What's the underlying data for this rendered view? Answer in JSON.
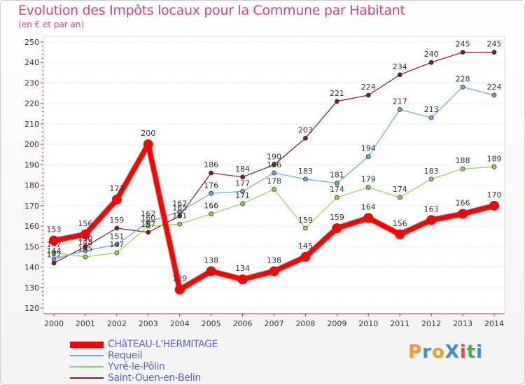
{
  "header": {
    "title": "Evolution des Impôts locaux pour la Commune par Habitant",
    "subtitle": "(en € et par an)"
  },
  "brand": {
    "name": "ProXiti",
    "colors": [
      "#f29a2e",
      "#3d8fd6",
      "#e0a92b",
      "#3d8fd6",
      "#e24f3d",
      "#4fae4a",
      "#3d8fd6"
    ]
  },
  "chart_data": {
    "type": "line",
    "title": "Evolution des Impôts locaux pour la Commune par Habitant",
    "subtitle": "(en € et par an)",
    "xlabel": "",
    "ylabel": "",
    "x": [
      "2000",
      "2001",
      "2002",
      "2003",
      "2004",
      "2005",
      "2006",
      "2007",
      "2008",
      "2009",
      "2010",
      "2011",
      "2012",
      "2013",
      "2014"
    ],
    "ylim": [
      120,
      250
    ],
    "yticks": [
      120,
      130,
      140,
      150,
      160,
      170,
      180,
      190,
      200,
      210,
      220,
      230,
      240,
      250
    ],
    "grid": true,
    "legend_position": "bottom-left",
    "series": [
      {
        "name": "Saint-Ouen-en-Belin",
        "color": "#7a1f1f",
        "width": 1.2,
        "values": [
          142,
          150,
          159,
          157,
          165,
          186,
          184,
          190,
          203,
          221,
          224,
          234,
          240,
          245,
          245
        ],
        "labels": [
          "142",
          "150",
          "159",
          "157",
          "165",
          "186",
          "184",
          "190",
          "203",
          "221",
          "224",
          "234",
          "240",
          "245",
          "245"
        ]
      },
      {
        "name": "Yvré-le-Pôlin",
        "color": "#8fd35a",
        "width": 1.2,
        "values": [
          147,
          145,
          147,
          160,
          161,
          166,
          171,
          178,
          159,
          174,
          179,
          174,
          183,
          188,
          189
        ],
        "labels": [
          "147",
          "145",
          "147",
          "160",
          "161",
          "166",
          "171",
          "178",
          "159",
          "174",
          "179",
          "174",
          "183",
          "188",
          "189"
        ]
      },
      {
        "name": "Requeil",
        "color": "#6aa6d6",
        "width": 1.2,
        "values": [
          144,
          148,
          151,
          162,
          167,
          176,
          177,
          186,
          183,
          181,
          194,
          217,
          213,
          228,
          224
        ],
        "labels": [
          "144",
          "148",
          "151",
          "162",
          "167",
          "176",
          "177",
          "186",
          "183",
          "181",
          "194",
          "217",
          "213",
          "228",
          "224"
        ]
      },
      {
        "name": "CHâTEAU-L'HERMITAGE",
        "color": "#ff0000",
        "width": 7,
        "values": [
          153,
          156,
          173,
          200,
          129,
          138,
          134,
          138,
          145,
          159,
          164,
          156,
          163,
          166,
          170
        ],
        "labels": [
          "153",
          "156",
          "173",
          "200",
          "129",
          "138",
          "134",
          "138",
          "145",
          "159",
          "164",
          "156",
          "163",
          "166",
          "170"
        ]
      }
    ]
  },
  "legend": [
    {
      "label": "CHâTEAU-L'HERMITAGE",
      "color": "#ff0000"
    },
    {
      "label": "Requeil",
      "color": "#6aa6d6"
    },
    {
      "label": "Yvré-le-Pôlin",
      "color": "#8fd35a"
    },
    {
      "label": "Saint-Ouen-en-Belin",
      "color": "#7a1f1f"
    }
  ]
}
